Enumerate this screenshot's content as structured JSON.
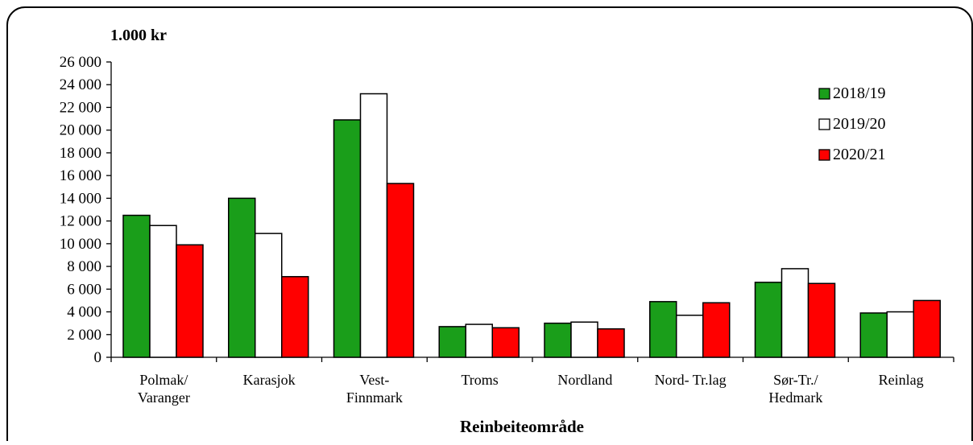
{
  "chart_data": {
    "type": "bar",
    "title": "1.000 kr",
    "xlabel": "Reinbeiteområde",
    "ylabel": "",
    "ylim": [
      0,
      26000
    ],
    "yticks": [
      0,
      2000,
      4000,
      6000,
      8000,
      10000,
      12000,
      14000,
      16000,
      18000,
      20000,
      22000,
      24000,
      26000
    ],
    "ytick_labels": [
      "0",
      "2 000",
      "4 000",
      "6 000",
      "8 000",
      "10 000",
      "12 000",
      "14 000",
      "16 000",
      "18 000",
      "20 000",
      "22 000",
      "24 000",
      "26 000"
    ],
    "categories": [
      [
        "Polmak/",
        "Varanger"
      ],
      [
        "Karasjok"
      ],
      [
        "Vest-",
        "Finnmark"
      ],
      [
        "Troms"
      ],
      [
        "Nordland"
      ],
      [
        "Nord- Tr.lag"
      ],
      [
        "Sør-Tr./",
        "Hedmark"
      ],
      [
        "Reinlag"
      ]
    ],
    "series": [
      {
        "name": "2018/19",
        "color": "#1a9e1a",
        "values": [
          12500,
          14000,
          20900,
          2700,
          3000,
          4900,
          6600,
          3900
        ]
      },
      {
        "name": "2019/20",
        "color": "#ffffff",
        "values": [
          11600,
          10900,
          23200,
          2900,
          3100,
          3700,
          7800,
          4000
        ]
      },
      {
        "name": "2020/21",
        "color": "#ff0000",
        "values": [
          9900,
          7100,
          15300,
          2600,
          2500,
          4800,
          6500,
          5000
        ]
      }
    ],
    "legend_position": "top-right",
    "grid": false
  }
}
